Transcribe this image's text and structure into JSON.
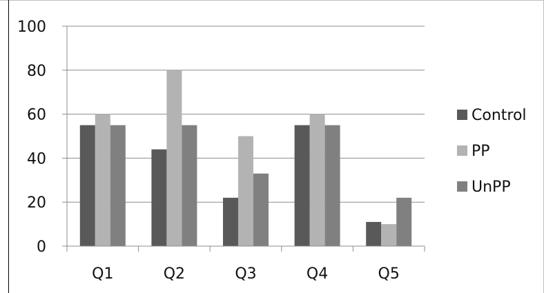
{
  "chart_data": {
    "type": "bar",
    "categories": [
      "Q1",
      "Q2",
      "Q3",
      "Q4",
      "Q5"
    ],
    "series": [
      {
        "name": "Control",
        "values": [
          55,
          44,
          22,
          55,
          11
        ],
        "color": "#595959"
      },
      {
        "name": "PP",
        "values": [
          60,
          80,
          50,
          60,
          10
        ],
        "color": "#b3b3b3"
      },
      {
        "name": "UnPP",
        "values": [
          55,
          55,
          33,
          55,
          22
        ],
        "color": "#808080"
      }
    ],
    "yticks": [
      0,
      20,
      40,
      60,
      80,
      100
    ],
    "ylim": [
      0,
      100
    ],
    "grid": true,
    "legend_position": "right",
    "gridline_color": "#8c8c8c",
    "axis_color": "#8c8c8c"
  }
}
